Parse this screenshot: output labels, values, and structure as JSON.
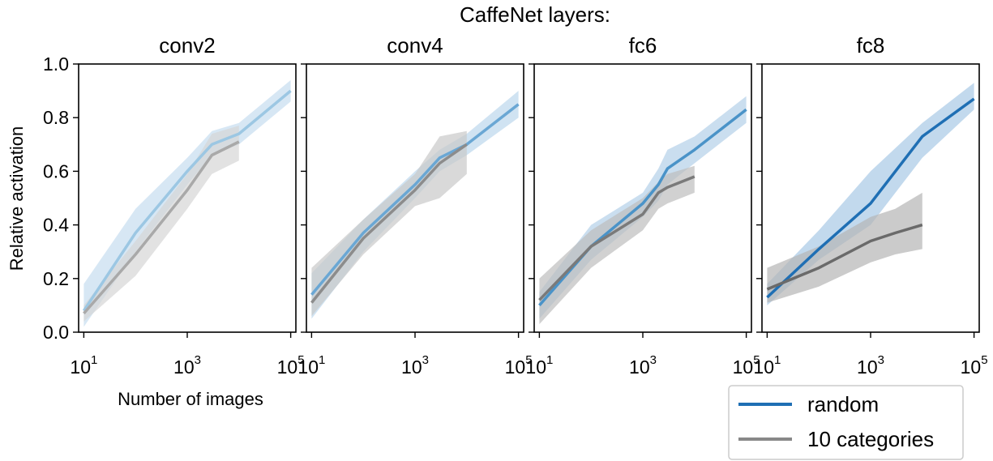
{
  "figure": {
    "suptitle": "CaffeNet layers:",
    "xlabel": "Number of images",
    "ylabel": "Relative activation"
  },
  "legend": {
    "position": "lower-right",
    "items": [
      {
        "label": "random",
        "color": "#1f6fb4"
      },
      {
        "label": "10 categories",
        "color": "#888888"
      }
    ]
  },
  "chart_data": [
    {
      "type": "line",
      "title": "conv2",
      "xscale": "log",
      "xlim": [
        10,
        100000
      ],
      "ylim": [
        0,
        1
      ],
      "x_ticks": [
        "10",
        "1000",
        "100000"
      ],
      "y_ticks": [
        "0.0",
        "0.2",
        "0.4",
        "0.6",
        "0.8",
        "1.0"
      ],
      "series": [
        {
          "name": "random",
          "color": "#9cc7e3",
          "band_color": "#c6ddef",
          "x": [
            10,
            100,
            1000,
            3000,
            10000,
            100000
          ],
          "y": [
            0.08,
            0.37,
            0.6,
            0.7,
            0.74,
            0.9
          ],
          "low": [
            0.02,
            0.3,
            0.55,
            0.66,
            0.7,
            0.86
          ],
          "high": [
            0.18,
            0.46,
            0.65,
            0.75,
            0.78,
            0.94
          ]
        },
        {
          "name": "10 categories",
          "color": "#a9a9a9",
          "band_color": "#d6d6d6",
          "x": [
            10,
            100,
            1000,
            3000,
            10000
          ],
          "y": [
            0.07,
            0.29,
            0.53,
            0.66,
            0.71
          ],
          "low": [
            0.04,
            0.21,
            0.46,
            0.59,
            0.64
          ],
          "high": [
            0.1,
            0.34,
            0.59,
            0.74,
            0.77
          ]
        }
      ]
    },
    {
      "type": "line",
      "title": "conv4",
      "xscale": "log",
      "xlim": [
        10,
        100000
      ],
      "ylim": [
        0,
        1
      ],
      "x_ticks": [
        "10",
        "1000",
        "100000"
      ],
      "y_ticks": [
        "0.0",
        "0.2",
        "0.4",
        "0.6",
        "0.8",
        "1.0"
      ],
      "series": [
        {
          "name": "random",
          "color": "#6aa7d4",
          "band_color": "#bcd7ec",
          "x": [
            10,
            100,
            1000,
            3000,
            10000,
            100000
          ],
          "y": [
            0.14,
            0.37,
            0.55,
            0.65,
            0.7,
            0.85
          ],
          "low": [
            0.05,
            0.3,
            0.5,
            0.6,
            0.66,
            0.8
          ],
          "high": [
            0.22,
            0.42,
            0.6,
            0.68,
            0.74,
            0.9
          ]
        },
        {
          "name": "10 categories",
          "color": "#8c8c8c",
          "band_color": "#c9c9c9",
          "x": [
            10,
            100,
            1000,
            3000,
            10000
          ],
          "y": [
            0.11,
            0.35,
            0.53,
            0.63,
            0.7
          ],
          "low": [
            0.06,
            0.29,
            0.47,
            0.5,
            0.59
          ],
          "high": [
            0.24,
            0.42,
            0.59,
            0.73,
            0.75
          ]
        }
      ]
    },
    {
      "type": "line",
      "title": "fc6",
      "xscale": "log",
      "xlim": [
        10,
        100000
      ],
      "ylim": [
        0,
        1
      ],
      "x_ticks": [
        "10",
        "1000",
        "100000"
      ],
      "y_ticks": [
        "0.0",
        "0.2",
        "0.4",
        "0.6",
        "0.8",
        "1.0"
      ],
      "series": [
        {
          "name": "random",
          "color": "#4a93c8",
          "band_color": "#b3d0e8",
          "x": [
            10,
            100,
            1000,
            2000,
            3000,
            10000,
            100000
          ],
          "y": [
            0.1,
            0.32,
            0.48,
            0.55,
            0.61,
            0.68,
            0.83
          ],
          "low": [
            0.05,
            0.27,
            0.43,
            0.49,
            0.55,
            0.63,
            0.78
          ],
          "high": [
            0.15,
            0.4,
            0.52,
            0.61,
            0.68,
            0.73,
            0.88
          ]
        },
        {
          "name": "10 categories",
          "color": "#7a7a7a",
          "band_color": "#bdbdbd",
          "x": [
            10,
            100,
            1000,
            2000,
            3000,
            10000
          ],
          "y": [
            0.12,
            0.32,
            0.44,
            0.52,
            0.54,
            0.58
          ],
          "low": [
            0.03,
            0.24,
            0.38,
            0.46,
            0.48,
            0.52
          ],
          "high": [
            0.2,
            0.38,
            0.5,
            0.56,
            0.59,
            0.62
          ]
        }
      ]
    },
    {
      "type": "line",
      "title": "fc8",
      "xscale": "log",
      "xlim": [
        10,
        100000
      ],
      "ylim": [
        0,
        1
      ],
      "x_ticks": [
        "10",
        "1000",
        "100000"
      ],
      "y_ticks": [
        "0.0",
        "0.2",
        "0.4",
        "0.6",
        "0.8",
        "1.0"
      ],
      "series": [
        {
          "name": "random",
          "color": "#1f6fb4",
          "band_color": "#a8c9e6",
          "x": [
            10,
            100,
            1000,
            10000,
            100000
          ],
          "y": [
            0.13,
            0.31,
            0.48,
            0.73,
            0.87
          ],
          "low": [
            0.1,
            0.27,
            0.4,
            0.65,
            0.83
          ],
          "high": [
            0.18,
            0.38,
            0.6,
            0.78,
            0.93
          ]
        },
        {
          "name": "10 categories",
          "color": "#6a6a6a",
          "band_color": "#b5b5b5",
          "x": [
            10,
            100,
            1000,
            3000,
            10000
          ],
          "y": [
            0.16,
            0.24,
            0.34,
            0.37,
            0.4
          ],
          "low": [
            0.11,
            0.17,
            0.26,
            0.29,
            0.31
          ],
          "high": [
            0.24,
            0.32,
            0.43,
            0.46,
            0.52
          ]
        }
      ]
    }
  ]
}
